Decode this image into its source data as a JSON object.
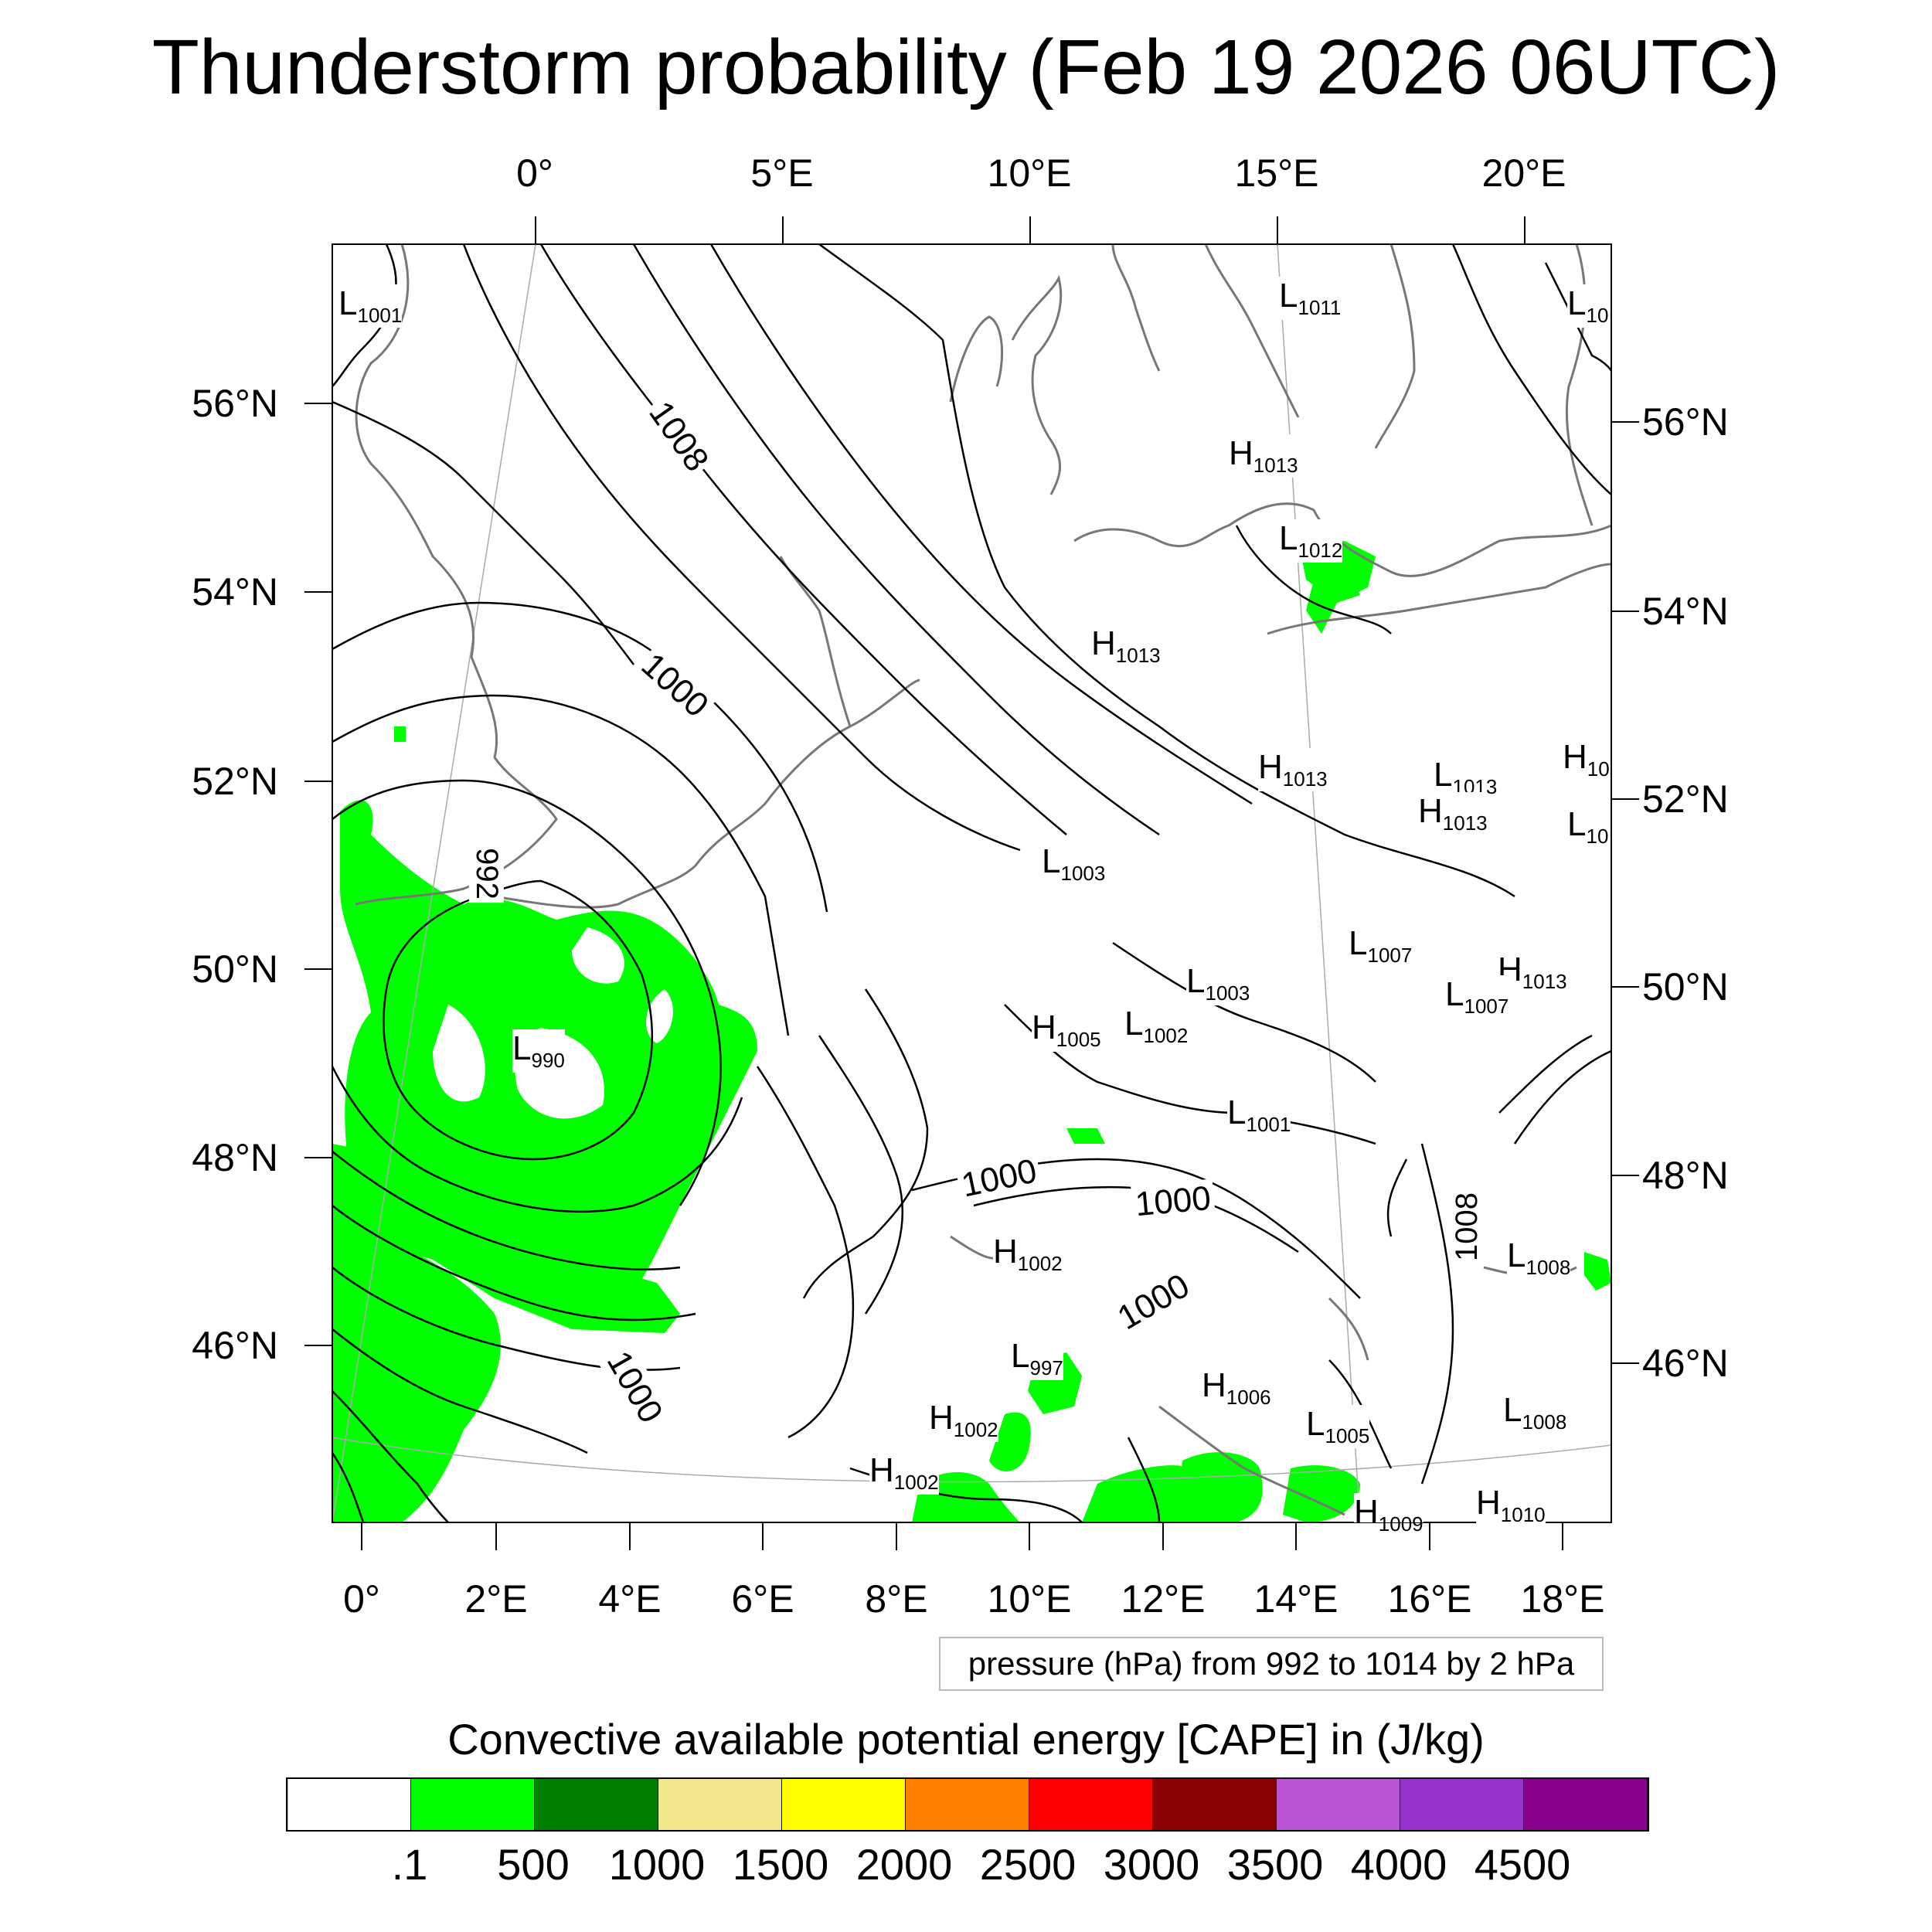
{
  "title": "Thunderstorm probability (Feb 19 2026 06UTC)",
  "ticks": {
    "top": [
      "0°",
      "5°E",
      "10°E",
      "15°E",
      "20°E"
    ],
    "bottom": [
      "0°",
      "2°E",
      "4°E",
      "6°E",
      "8°E",
      "10°E",
      "12°E",
      "14°E",
      "16°E",
      "18°E"
    ],
    "left": [
      "56°N",
      "54°N",
      "52°N",
      "50°N",
      "48°N",
      "46°N"
    ],
    "right": [
      "56°N",
      "54°N",
      "52°N",
      "50°N",
      "48°N",
      "46°N"
    ]
  },
  "pressure_centers": [
    {
      "type": "L",
      "value": "1001"
    },
    {
      "type": "L",
      "value": "1011"
    },
    {
      "type": "L",
      "value": "10"
    },
    {
      "type": "H",
      "value": "1013"
    },
    {
      "type": "L",
      "value": "1012"
    },
    {
      "type": "H",
      "value": "1013"
    },
    {
      "type": "H",
      "value": "1013"
    },
    {
      "type": "L",
      "value": "1013"
    },
    {
      "type": "H",
      "value": "1013"
    },
    {
      "type": "H",
      "value": "10"
    },
    {
      "type": "L",
      "value": "10"
    },
    {
      "type": "L",
      "value": "1003"
    },
    {
      "type": "L",
      "value": "1007"
    },
    {
      "type": "H",
      "value": "1013"
    },
    {
      "type": "L",
      "value": "1003"
    },
    {
      "type": "L",
      "value": "1007"
    },
    {
      "type": "H",
      "value": "1005"
    },
    {
      "type": "L",
      "value": "1002"
    },
    {
      "type": "L",
      "value": "990"
    },
    {
      "type": "L",
      "value": "1001"
    },
    {
      "type": "H",
      "value": "1002"
    },
    {
      "type": "L",
      "value": "1008"
    },
    {
      "type": "L",
      "value": "997"
    },
    {
      "type": "H",
      "value": "1006"
    },
    {
      "type": "H",
      "value": "1002"
    },
    {
      "type": "L",
      "value": "1005"
    },
    {
      "type": "L",
      "value": "1008"
    },
    {
      "type": "H",
      "value": "1002"
    },
    {
      "type": "H",
      "value": "1010"
    },
    {
      "type": "H",
      "value": "1009"
    }
  ],
  "contour_labels": [
    "1008",
    "1000",
    "992",
    "1000",
    "1000",
    "1000",
    "1000",
    "1008"
  ],
  "pressure_legend": "pressure (hPa) from 992 to 1014 by 2 hPa",
  "cape_title": "Convective available potential energy [CAPE] in (J/kg)",
  "colorbar": {
    "colors": [
      "#ffffff",
      "#00ff00",
      "#008000",
      "#f0e68c",
      "#ffff00",
      "#ff8000",
      "#ff0000",
      "#8b0000",
      "#ba55d3",
      "#9932cc",
      "#8b008b"
    ],
    "labels": [
      ".1",
      "500",
      "1000",
      "1500",
      "2000",
      "2500",
      "3000",
      "3500",
      "4000",
      "4500"
    ]
  }
}
